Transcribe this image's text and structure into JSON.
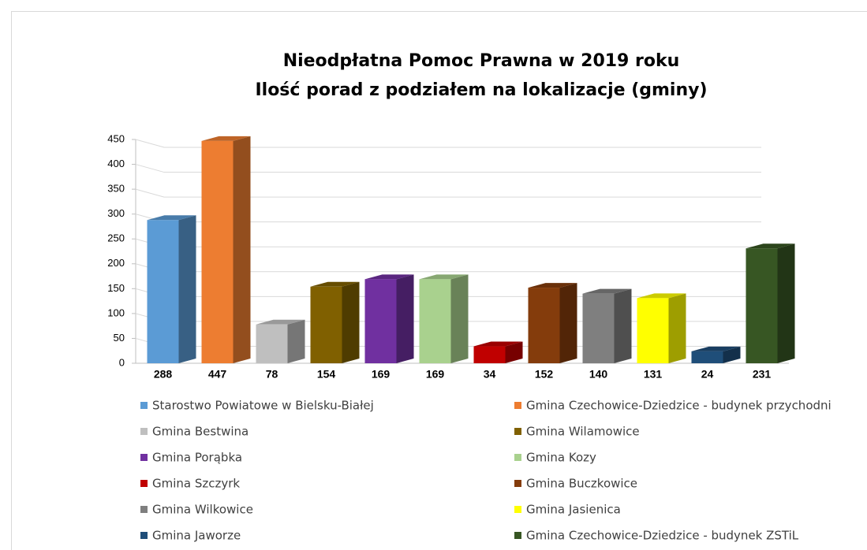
{
  "chart_data": {
    "type": "bar3d",
    "title": "Nieodpłatna Pomoc Prawna  w 2019 roku",
    "subtitle": "Ilość porad z podziałem na lokalizacje (gminy)",
    "categories": [
      "Starostwo Powiatowe w Bielsku-Białej",
      "Gmina Czechowice-Dziedzice - budynek przychodni",
      "Gmina Bestwina",
      "Gmina Wilamowice",
      "Gmina Porąbka",
      "Gmina Kozy",
      "Gmina Szczyrk",
      "Gmina Buczkowice",
      "Gmina Wilkowice",
      "Gmina Jasienica",
      "Gmina Jaworze",
      "Gmina Czechowice-Dziedzice - budynek ZSTiL"
    ],
    "values": [
      288,
      447,
      78,
      154,
      169,
      169,
      34,
      152,
      140,
      131,
      24,
      231
    ],
    "colors": [
      "#5b9bd5",
      "#ed7d31",
      "#bfbfbf",
      "#806000",
      "#7030a0",
      "#a9d18e",
      "#c00000",
      "#843c0c",
      "#7f7f7f",
      "#ffff00",
      "#1f4e79",
      "#375623"
    ],
    "ylim": [
      0,
      450
    ],
    "yticks": [
      0,
      50,
      100,
      150,
      200,
      250,
      300,
      350,
      400,
      450
    ],
    "grid": true
  }
}
